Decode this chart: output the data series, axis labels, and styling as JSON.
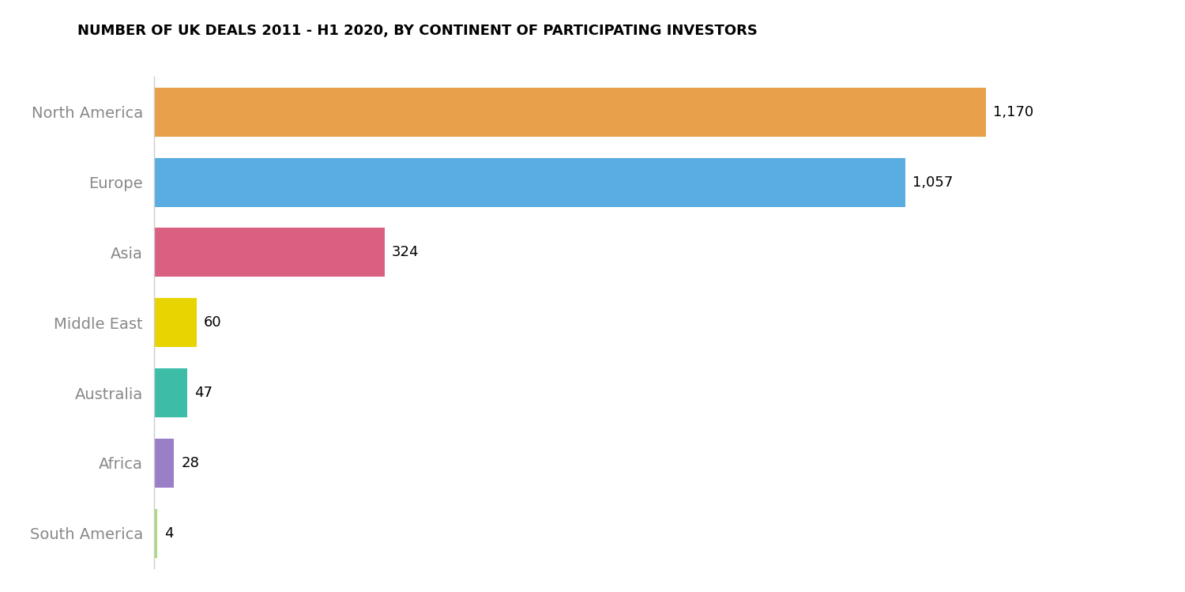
{
  "title": "NUMBER OF UK DEALS 2011 - H1 2020, BY CONTINENT OF PARTICIPATING INVESTORS",
  "categories": [
    "North America",
    "Europe",
    "Asia",
    "Middle East",
    "Australia",
    "Africa",
    "South America"
  ],
  "values": [
    1170,
    1057,
    324,
    60,
    47,
    28,
    4
  ],
  "bar_colors": [
    "#E8A04A",
    "#5AADE0",
    "#D96080",
    "#E8D400",
    "#3DBDA8",
    "#9B7EC8",
    "#AADA80"
  ],
  "background_color": "#ffffff",
  "title_fontsize": 13,
  "label_fontsize": 13,
  "tick_fontsize": 14,
  "tick_color": "#888888",
  "xlim": [
    0,
    1300
  ]
}
